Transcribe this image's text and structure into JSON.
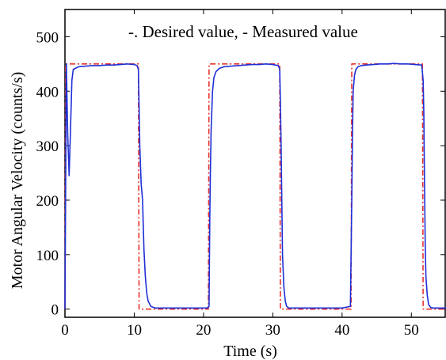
{
  "chart_data": {
    "type": "line",
    "title": "",
    "xlabel": "Time (s)",
    "ylabel": "Motor Angular Velocity (counts/s)",
    "xlim": [
      0,
      55
    ],
    "ylim": [
      -15,
      550
    ],
    "x_ticks": [
      0,
      10,
      20,
      30,
      40,
      50
    ],
    "y_ticks": [
      0,
      100,
      200,
      300,
      400,
      500
    ],
    "legend_text": "-. Desired value, - Measured value",
    "legend_position": "top-center",
    "grid": false,
    "series": [
      {
        "name": "Desired value",
        "style": "dash-dot",
        "color": "#e8322c",
        "x": [
          0.0,
          0.1,
          10.6,
          10.7,
          20.7,
          20.8,
          31.0,
          31.1,
          41.3,
          41.4,
          51.6,
          51.7,
          55.0
        ],
        "y": [
          0,
          450,
          450,
          0,
          0,
          450,
          450,
          0,
          0,
          450,
          450,
          0,
          0
        ]
      },
      {
        "name": "Measured value",
        "style": "solid",
        "color": "#1f2fd6",
        "x": [
          0.0,
          0.2,
          0.4,
          0.6,
          0.8,
          1.0,
          1.2,
          1.5,
          2.0,
          3.0,
          4.0,
          5.0,
          6.0,
          7.0,
          8.0,
          9.0,
          10.0,
          10.4,
          10.6,
          10.8,
          11.0,
          11.2,
          11.4,
          11.6,
          11.8,
          12.0,
          12.4,
          13.0,
          15.0,
          17.0,
          19.0,
          20.5,
          20.8,
          20.9,
          21.0,
          21.1,
          21.3,
          21.5,
          21.8,
          22.3,
          23.0,
          24.0,
          25.0,
          26.0,
          27.0,
          28.0,
          29.0,
          30.0,
          30.8,
          31.0,
          31.1,
          31.2,
          31.3,
          31.4,
          31.6,
          31.8,
          32.0,
          32.3,
          32.8,
          34.0,
          36.0,
          38.0,
          40.0,
          41.2,
          41.4,
          41.5,
          41.6,
          41.8,
          42.0,
          42.3,
          42.8,
          43.5,
          44.5,
          45.5,
          46.5,
          47.5,
          48.5,
          49.5,
          50.5,
          51.5,
          51.7,
          51.8,
          51.9,
          52.0,
          52.1,
          52.3,
          52.5,
          52.8,
          53.2,
          54.0,
          55.0
        ],
        "y": [
          0,
          450,
          320,
          245,
          330,
          420,
          440,
          442,
          445,
          446,
          447,
          447,
          448,
          448,
          449,
          450,
          449,
          447,
          440,
          300,
          230,
          200,
          110,
          60,
          30,
          15,
          5,
          2,
          2,
          2,
          2,
          2,
          5,
          160,
          260,
          330,
          400,
          425,
          436,
          442,
          445,
          446,
          447,
          448,
          449,
          449,
          450,
          449,
          447,
          440,
          380,
          300,
          200,
          100,
          40,
          15,
          5,
          2,
          2,
          2,
          2,
          2,
          2,
          5,
          200,
          320,
          400,
          430,
          440,
          445,
          447,
          448,
          449,
          450,
          450,
          451,
          450,
          450,
          449,
          448,
          420,
          360,
          230,
          120,
          60,
          25,
          8,
          3,
          2,
          2,
          2
        ]
      }
    ]
  }
}
